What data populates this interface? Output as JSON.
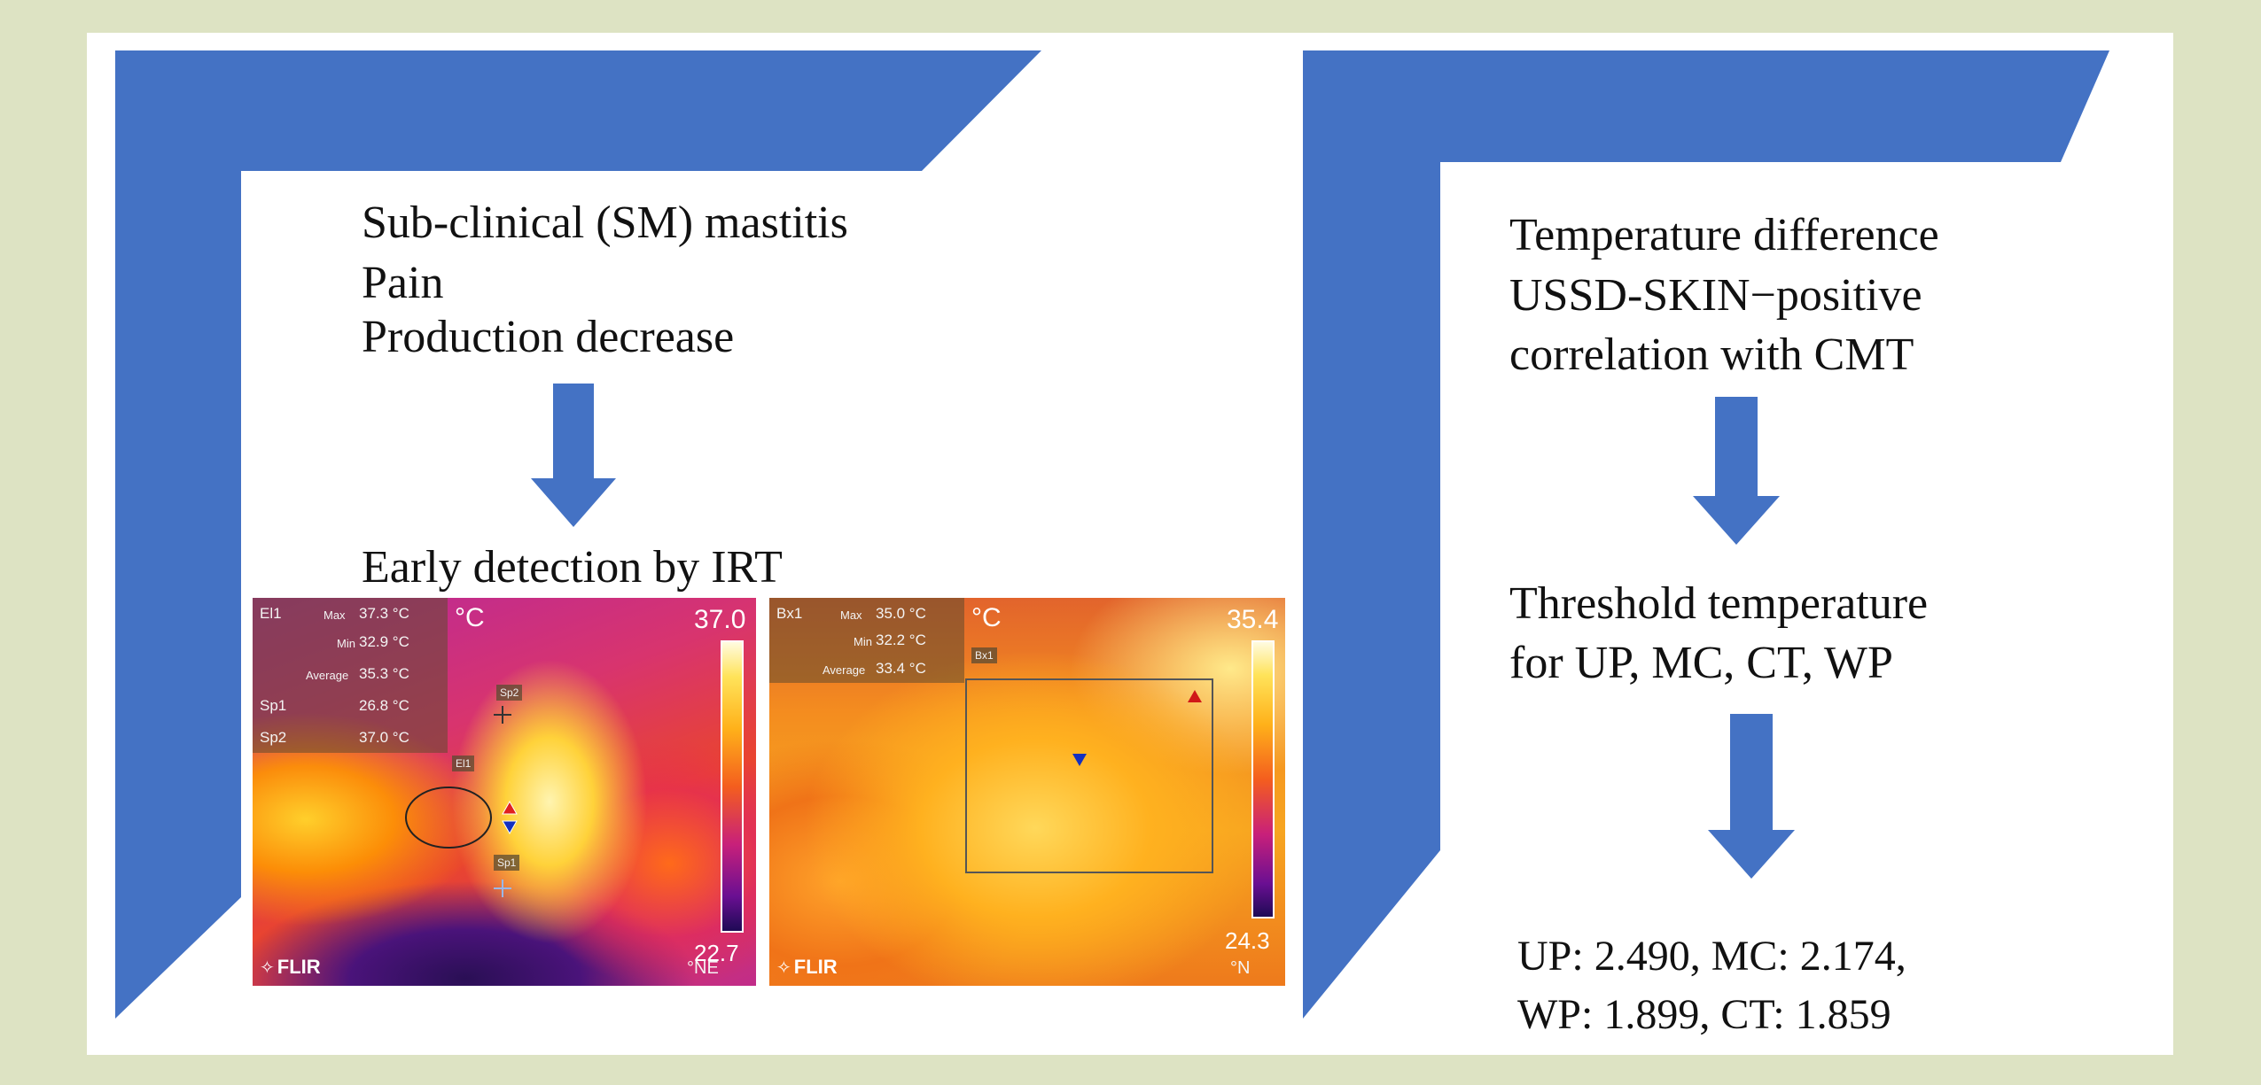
{
  "colors": {
    "background": "#dde3c3",
    "panel": "#ffffff",
    "frame_blue": "#4472c4",
    "arrow_blue": "#4472c4"
  },
  "left_column": {
    "symptoms": [
      "Sub-clinical (SM) mastitis",
      "Pain",
      "Production decrease"
    ],
    "detection": "Early detection by IRT"
  },
  "right_column": {
    "finding_lines": [
      "Temperature difference",
      "USSD-SKIN−positive",
      "correlation with CMT"
    ],
    "threshold_lines": [
      "Threshold temperature",
      "for UP, MC, CT, WP"
    ],
    "values_lines": [
      "UP: 2.490, MC: 2.174,",
      "WP: 1.899, CT: 1.859"
    ]
  },
  "thermal_left": {
    "measure_id": "El1",
    "max_label": "Max",
    "max_value": "37.3 °C",
    "min_label": "Min",
    "min_value": "32.9 °C",
    "avg_label": "Average",
    "avg_value": "35.3 °C",
    "sp1_label": "Sp1",
    "sp1_value": "26.8 °C",
    "sp2_label": "Sp2",
    "sp2_value": "37.0 °C",
    "unit": "°C",
    "scale_top": "37.0",
    "scale_bottom": "22.7",
    "tag_sp2": "Sp2",
    "tag_el1": "El1",
    "tag_sp1": "Sp1",
    "logo": "FLIR",
    "corner_text": "°NE"
  },
  "thermal_right": {
    "measure_id": "Bx1",
    "max_label": "Max",
    "max_value": "35.0 °C",
    "min_label": "Min",
    "min_value": "32.2 °C",
    "avg_label": "Average",
    "avg_value": "33.4 °C",
    "unit": "°C",
    "scale_top": "35.4",
    "scale_bottom": "24.3",
    "tag_bx1": "Bx1",
    "logo": "FLIR",
    "corner_text": "°N"
  }
}
